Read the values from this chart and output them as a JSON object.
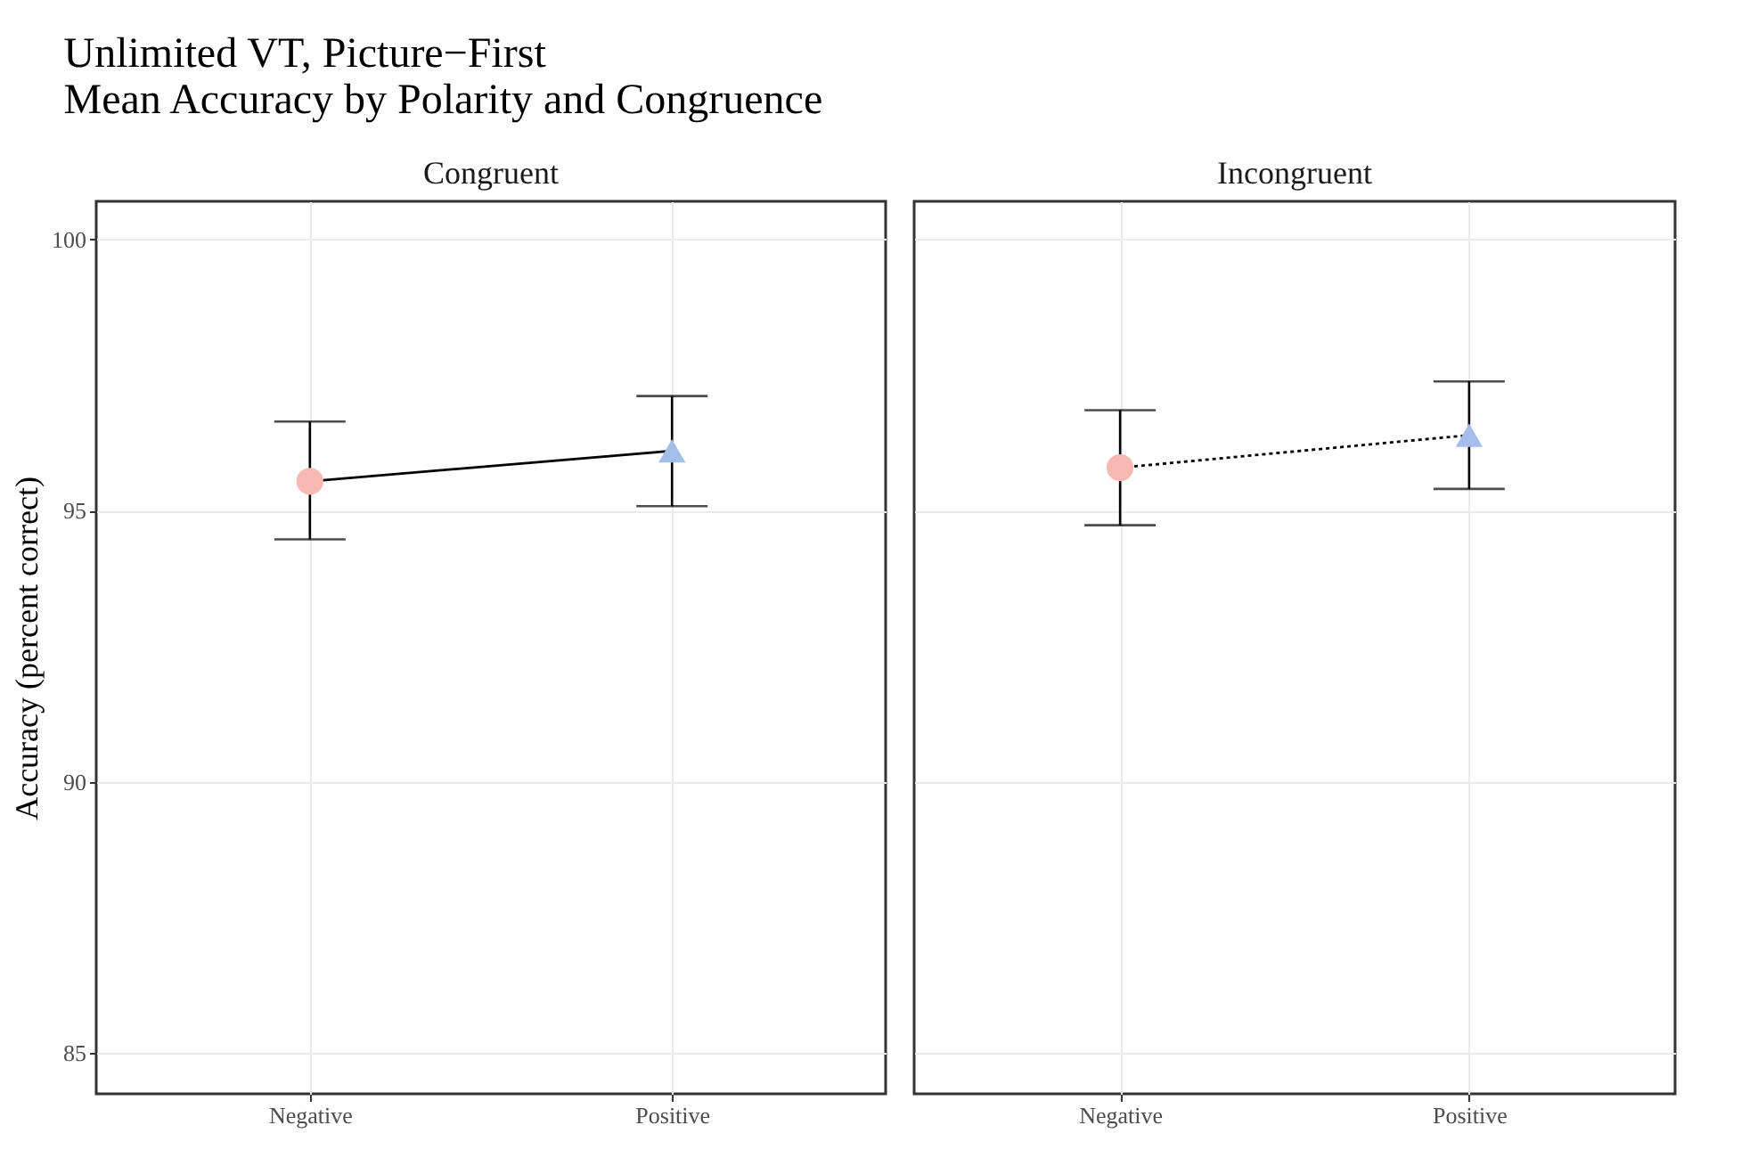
{
  "chart_data": [
    {
      "type": "line",
      "title": "Unlimited VT, Picture−First",
      "subtitle": "Mean Accuracy by Polarity and Congruence",
      "annotations": [
        "Congruent"
      ],
      "ylabel": "Accuracy (percent correct)",
      "categories": [
        "Negative",
        "Positive"
      ],
      "ylim": [
        84.25,
        100.7
      ],
      "yticks": [
        85,
        90,
        95,
        100
      ],
      "grid": true,
      "series": [
        {
          "color": "#000000",
          "values": [
            95.54,
            96.1
          ],
          "line_style": "solid",
          "marker": "none"
        },
        {
          "type": "scatter",
          "color": "#f8b9b3",
          "marker": "circle",
          "x": [
            "Negative"
          ],
          "values": [
            95.54
          ],
          "errors": [
            [
              94.47,
              96.64
            ]
          ]
        },
        {
          "type": "scatter",
          "color": "#a4bde9",
          "marker": "triangle",
          "x": [
            "Positive"
          ],
          "values": [
            96.1
          ],
          "errors": [
            [
              95.08,
              97.11
            ]
          ]
        }
      ]
    },
    {
      "type": "line",
      "annotations": [
        "Incongruent"
      ],
      "categories": [
        "Negative",
        "Positive"
      ],
      "ylim": [
        84.25,
        100.7
      ],
      "yticks": [
        85,
        90,
        95,
        100
      ],
      "grid": true,
      "tick_labels": "x",
      "series": [
        {
          "color": "#000000",
          "values": [
            95.79,
            96.39
          ],
          "line_style": "dotted",
          "marker": "none"
        },
        {
          "type": "scatter",
          "color": "#f8b9b3",
          "marker": "circle",
          "x": [
            "Negative"
          ],
          "values": [
            95.79
          ],
          "errors": [
            [
              94.73,
              96.85
            ]
          ]
        },
        {
          "type": "scatter",
          "color": "#a4bde9",
          "marker": "triangle",
          "x": [
            "Positive"
          ],
          "values": [
            96.39
          ],
          "errors": [
            [
              95.4,
              97.38
            ]
          ]
        }
      ]
    }
  ]
}
